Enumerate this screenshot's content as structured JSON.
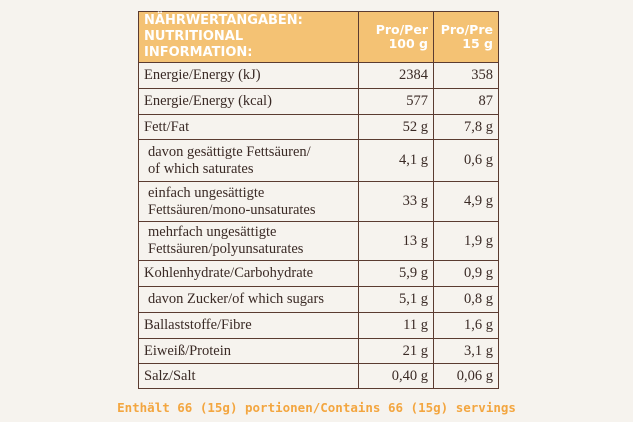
{
  "table": {
    "header": {
      "title": [
        "NÄHRWERTANGABEN:",
        "NUTRITIONAL INFORMATION:"
      ],
      "col1": [
        "Pro/Per",
        "100 g"
      ],
      "col2": [
        "Pro/Pre",
        "15 g"
      ]
    },
    "rows": [
      {
        "label": [
          "Energie/Energy (kJ)"
        ],
        "v100": "2384",
        "v15": "358"
      },
      {
        "label": [
          "Energie/Energy (kcal)"
        ],
        "v100": "577",
        "v15": "87"
      },
      {
        "label": [
          "Fett/Fat"
        ],
        "v100": "52 g",
        "v15": "7,8 g"
      },
      {
        "label": [
          "davon gesättigte Fettsäuren/",
          "of which saturates"
        ],
        "v100": "4,1 g",
        "v15": "0,6 g",
        "sub": true
      },
      {
        "label": [
          "einfach ungesättigte",
          "Fettsäuren/mono-unsaturates"
        ],
        "v100": "33 g",
        "v15": "4,9 g",
        "sub": true
      },
      {
        "label": [
          "mehrfach ungesättigte",
          "Fettsäuren/polyunsaturates"
        ],
        "v100": "13 g",
        "v15": "1,9 g",
        "sub": true
      },
      {
        "label": [
          "Kohlenhydrate/Carbohydrate"
        ],
        "v100": "5,9 g",
        "v15": "0,9 g"
      },
      {
        "label": [
          "davon Zucker/of which sugars"
        ],
        "v100": "5,1 g",
        "v15": "0,8 g",
        "sub": true
      },
      {
        "label": [
          "Ballaststoffe/Fibre"
        ],
        "v100": "11 g",
        "v15": "1,6 g"
      },
      {
        "label": [
          "Eiweiß/Protein"
        ],
        "v100": "21 g",
        "v15": "3,1 g"
      },
      {
        "label": [
          "Salz/Salt"
        ],
        "v100": "0,40 g",
        "v15": "0,06 g"
      }
    ],
    "footer": "Enthält 66 (15g) portionen/Contains 66 (15g) servings"
  }
}
